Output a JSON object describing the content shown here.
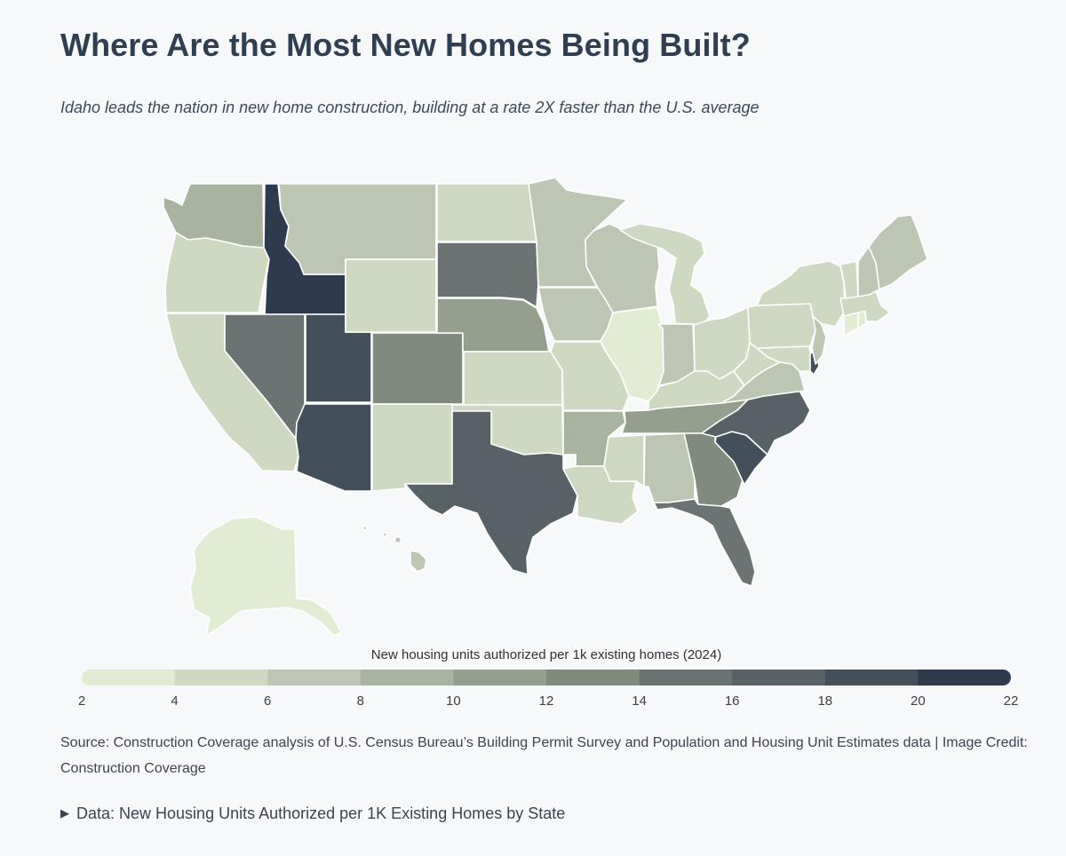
{
  "header": {
    "title": "Where Are the Most New Homes Being Built?",
    "subtitle": "Idaho leads the nation in new home construction, building at a rate 2X faster than the U.S. average"
  },
  "legend": {
    "title": "New housing units authorized per 1k existing homes (2024)",
    "ticks": [
      "2",
      "4",
      "6",
      "8",
      "10",
      "12",
      "14",
      "16",
      "18",
      "20",
      "22"
    ],
    "colors": [
      "#e2ecd3",
      "#cfd9c2",
      "#bcc6b2",
      "#a8b3a0",
      "#949f8d",
      "#808b7e",
      "#6b7473",
      "#576166",
      "#43505c",
      "#2e3a4e"
    ]
  },
  "source": {
    "text": "Source: Construction Coverage analysis of U.S. Census Bureau’s Building Permit Survey and Population and Housing Unit Estimates data | Image Credit: Construction Coverage"
  },
  "details": {
    "label": "Data: New Housing Units Authorized per 1K Existing Homes by State"
  },
  "chart_data": {
    "type": "choropleth",
    "title": "Where Are the Most New Homes Being Built?",
    "subtitle": "Idaho leads the nation in new home construction, building at a rate 2X faster than the U.S. average",
    "color_scale_label": "New housing units authorized per 1k existing homes (2024)",
    "scale_range": [
      2,
      22
    ],
    "approximate_values_by_state": {
      "WA": 9,
      "OR": 5,
      "CA": 5,
      "ID": 21,
      "NV": 15,
      "UT": 19,
      "AZ": 19,
      "MT": 7,
      "WY": 5,
      "CO": 13,
      "NM": 5,
      "ND": 5,
      "SD": 15,
      "NE": 11,
      "KS": 5,
      "OK": 5,
      "TX": 17,
      "MN": 7,
      "IA": 7,
      "MO": 5,
      "AR": 9,
      "LA": 5,
      "WI": 7,
      "IL": 3,
      "MI": 5,
      "IN": 7,
      "OH": 5,
      "KY": 5,
      "TN": 11,
      "MS": 5,
      "AL": 7,
      "GA": 13,
      "FL": 15,
      "SC": 19,
      "NC": 17,
      "VA": 7,
      "WV": 5,
      "PA": 5,
      "NY": 5,
      "ME": 7,
      "VT": 5,
      "NH": 7,
      "MA": 5,
      "RI": 3,
      "CT": 3,
      "NJ": 7,
      "DE": 19,
      "MD": 5,
      "AK": 3,
      "HI": 7
    }
  }
}
